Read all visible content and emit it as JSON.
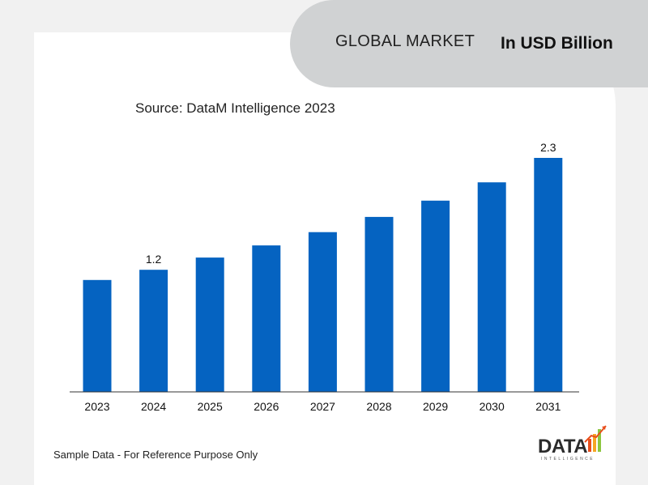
{
  "header": {
    "title": "GLOBAL MARKET",
    "unit": "In USD Billion"
  },
  "source": "Source: DataM Intelligence 2023",
  "footer_note": "Sample Data - For Reference Purpose Only",
  "logo": {
    "text": "DATA",
    "subtext": "INTELLIGENCE",
    "colors": [
      "#e84e1b",
      "#f5a623",
      "#8cc63f",
      "#2b2b2b"
    ]
  },
  "colors": {
    "bar": "#0563c1",
    "axis": "#333333",
    "header_bg": "#d0d2d3",
    "page_bg": "#f1f1f1",
    "card_bg": "#ffffff"
  },
  "chart_data": {
    "type": "bar",
    "categories": [
      "2023",
      "2024",
      "2025",
      "2026",
      "2027",
      "2028",
      "2029",
      "2030",
      "2031"
    ],
    "values": [
      1.1,
      1.2,
      1.32,
      1.44,
      1.57,
      1.72,
      1.88,
      2.06,
      2.3
    ],
    "data_labels": [
      {
        "index": 1,
        "text": "1.2"
      },
      {
        "index": 8,
        "text": "2.3"
      }
    ],
    "ylim": [
      0,
      2.3
    ],
    "grid": false,
    "legend": "none"
  }
}
